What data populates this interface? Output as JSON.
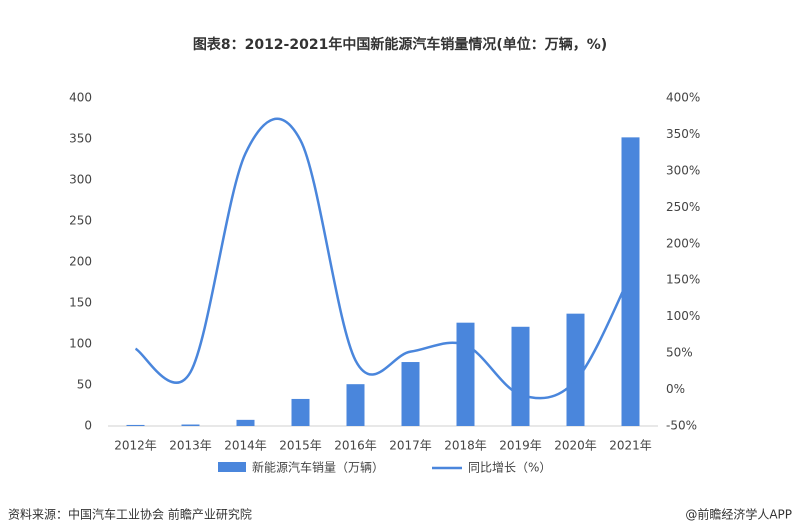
{
  "chart_data": {
    "type": "bar-line",
    "title": "图表8：2012-2021年中国新能源汽车销量情况(单位：万辆，%)",
    "categories": [
      "2012年",
      "2013年",
      "2014年",
      "2015年",
      "2016年",
      "2017年",
      "2018年",
      "2019年",
      "2020年",
      "2021年"
    ],
    "series": [
      {
        "name": "新能源汽车销量（万辆）",
        "color": "#4a86dc",
        "type": "bar",
        "values": [
          1.3,
          1.8,
          7.5,
          33,
          51,
          78,
          126,
          121,
          137,
          352
        ]
      },
      {
        "name": "同比增长（%）",
        "color": "#4a86dc",
        "type": "line",
        "axis": "y2",
        "values": [
          56,
          24,
          324,
          342,
          40,
          52,
          61,
          -7,
          12,
          157
        ]
      }
    ],
    "ylim": [
      0,
      400
    ],
    "yticks": [
      0,
      50,
      100,
      150,
      200,
      250,
      300,
      350,
      400
    ],
    "y2lim": [
      -50,
      400
    ],
    "y2ticks": [
      {
        "value": -50,
        "label": "-50%"
      },
      {
        "value": 0,
        "label": "0%"
      },
      {
        "value": 50,
        "label": "50%"
      },
      {
        "value": 100,
        "label": "100%"
      },
      {
        "value": 150,
        "label": "150%"
      },
      {
        "value": 200,
        "label": "200%"
      },
      {
        "value": 250,
        "label": "250%"
      },
      {
        "value": 300,
        "label": "300%"
      },
      {
        "value": 350,
        "label": "350%"
      },
      {
        "value": 400,
        "label": "400%"
      }
    ],
    "source": "资料来源：中国汽车工业协会 前瞻产业研究院",
    "credit": "@前瞻经济学人APP"
  }
}
